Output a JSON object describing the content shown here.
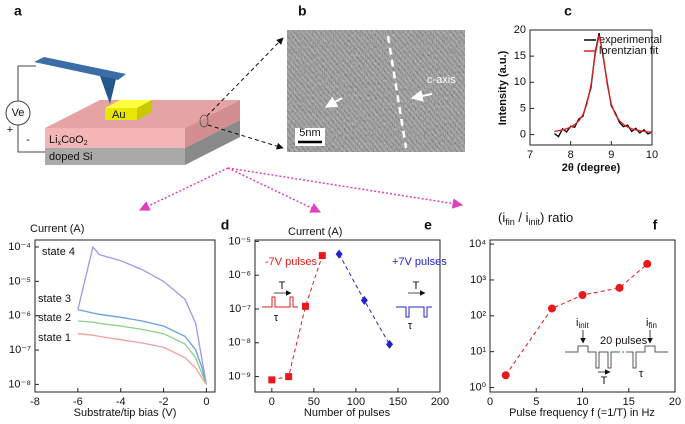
{
  "schematic": {
    "label": "a",
    "source": "Ve",
    "plus": "+",
    "minus": "-",
    "pad": "Au",
    "film": [
      "Li",
      "x",
      "CoO",
      "2"
    ],
    "substrate": "doped Si"
  },
  "tem": {
    "label": "b",
    "axis": "c-axis",
    "scale": "5nm"
  },
  "chart_data": [
    {
      "type": "line",
      "panel_label": "c",
      "ylabel": "Intensity (a.u.)",
      "xlabel": "2θ (degree)",
      "x": [
        7.6,
        7.7,
        7.8,
        7.9,
        8.0,
        8.1,
        8.2,
        8.3,
        8.4,
        8.5,
        8.6,
        8.7,
        8.8,
        8.9,
        9.0,
        9.1,
        9.2,
        9.3,
        9.4,
        9.5,
        9.6,
        9.7,
        9.8,
        9.9,
        10.0
      ],
      "xlim": [
        7,
        10
      ],
      "xticks": [
        7,
        8,
        9,
        10
      ],
      "ylim": [
        -2,
        20
      ],
      "yticks": [
        0,
        5,
        10,
        15,
        20
      ],
      "legend": "upper right",
      "series": [
        {
          "name": "experimental",
          "color": "#000000",
          "values": [
            0.2,
            -0.4,
            1.1,
            0.5,
            1.6,
            1.4,
            3.0,
            3.5,
            6.2,
            9.0,
            15.6,
            19.4,
            14.8,
            9.9,
            5.5,
            4.1,
            2.3,
            1.5,
            1.8,
            0.6,
            1.2,
            0.3,
            0.9,
            0.1,
            0.5
          ]
        },
        {
          "name": "lorentzian fit",
          "color": "#e02020",
          "values": [
            0.61,
            0.73,
            0.89,
            1.12,
            1.44,
            1.9,
            2.62,
            3.8,
            5.85,
            9.5,
            15.2,
            19,
            15.2,
            9.5,
            5.85,
            3.8,
            2.62,
            1.9,
            1.44,
            1.12,
            0.89,
            0.73,
            0.61,
            0.51,
            0.44
          ]
        }
      ]
    },
    {
      "type": "line",
      "panel_label": "d",
      "ylabel": "Current (A)",
      "xlabel": "Substrate/tip bias (V)",
      "yscale": "log",
      "x": [
        -6,
        -5.3,
        -5,
        -4,
        -3,
        -2,
        -1,
        -0.5,
        -0.2,
        0
      ],
      "xlim": [
        -8,
        0.4
      ],
      "xticks": [
        -8,
        -6,
        -4,
        -2,
        0
      ],
      "ylim": [
        6e-09,
        0.00016
      ],
      "yticks": [
        {
          "value": 1e-08,
          "label": "10⁻⁸"
        },
        {
          "value": 1e-07,
          "label": "10⁻⁷"
        },
        {
          "value": 1e-06,
          "label": "10⁻⁶"
        },
        {
          "value": 1e-05,
          "label": "10⁻⁵"
        },
        {
          "value": 0.0001,
          "label": "10⁻⁴"
        }
      ],
      "series": [
        {
          "name": "state 4",
          "color": "#9a9ae6",
          "values": [
            1.5e-06,
            0.0001,
            6e-05,
            4e-05,
            2.2e-05,
            1e-05,
            3e-06,
            6e-07,
            5e-08,
            1e-08
          ]
        },
        {
          "name": "state 3",
          "color": "#6aa0e0",
          "values": [
            1.5e-06,
            1.2e-06,
            1.1e-06,
            9e-07,
            7e-07,
            5e-07,
            2.5e-07,
            1e-07,
            3e-08,
            1e-08
          ]
        },
        {
          "name": "state 2",
          "color": "#8ad08a",
          "values": [
            7e-07,
            6.5e-07,
            6e-07,
            5e-07,
            4e-07,
            3e-07,
            1.5e-07,
            6e-08,
            2e-08,
            1e-08
          ]
        },
        {
          "name": "state 1",
          "color": "#f0a0a0",
          "values": [
            3e-07,
            2.7e-07,
            2.5e-07,
            2e-07,
            1.6e-07,
            1.2e-07,
            6e-08,
            3e-08,
            1.5e-08,
            1e-08
          ]
        }
      ]
    },
    {
      "type": "scatter",
      "panel_label": "e",
      "ylabel": "Current (A)",
      "xlabel": "Number of pulses",
      "yscale": "log",
      "xlim": [
        -20,
        200
      ],
      "xticks": [
        0,
        50,
        100,
        150,
        200
      ],
      "ylim": [
        3.5e-10,
        1.1e-05
      ],
      "yticks": [
        {
          "value": 1e-09,
          "label": "10⁻⁹"
        },
        {
          "value": 1e-08,
          "label": "10⁻⁸"
        },
        {
          "value": 1e-07,
          "label": "10⁻⁷"
        },
        {
          "value": 1e-06,
          "label": "10⁻⁶"
        },
        {
          "value": 1e-05,
          "label": "10⁻⁵"
        }
      ],
      "series": [
        {
          "name": "-7V pulses",
          "color": "#e8191c",
          "marker": "square",
          "line": "dashed",
          "x": [
            0,
            20,
            40,
            60
          ],
          "values": [
            8e-10,
            1e-09,
            1.2e-07,
            3.8e-06
          ]
        },
        {
          "name": "+7V pulses",
          "color": "#2222cc",
          "marker": "diamond",
          "line": "dashed",
          "x": [
            80,
            110,
            140
          ],
          "values": [
            4.2e-06,
            1.8e-07,
            9e-09
          ]
        }
      ],
      "annotations": [
        "T",
        "τ",
        "T",
        "τ"
      ]
    },
    {
      "type": "scatter",
      "panel_label": "f",
      "title": [
        "(i",
        "fin",
        " / i",
        "init",
        ") ratio"
      ],
      "xlabel": "Pulse frequency f (=1/T) in Hz",
      "yscale": "log",
      "xlim": [
        0,
        20
      ],
      "xticks": [
        0,
        5,
        10,
        15,
        20
      ],
      "ylim": [
        0.75,
        13000
      ],
      "yticks": [
        {
          "value": 1,
          "label": "10⁰"
        },
        {
          "value": 10,
          "label": "10¹"
        },
        {
          "value": 100,
          "label": "10²"
        },
        {
          "value": 1000,
          "label": "10³"
        },
        {
          "value": 10000,
          "label": "10⁴"
        }
      ],
      "series": [
        {
          "color": "#e8191c",
          "marker": "circle",
          "line": "dashed",
          "x": [
            1.7,
            6.7,
            10,
            14,
            17
          ],
          "values": [
            2.2,
            160,
            380,
            600,
            2800
          ]
        }
      ],
      "annotations": [
        "i",
        "init",
        "i",
        "fin",
        "20 pulses",
        "T",
        "τ"
      ]
    }
  ]
}
